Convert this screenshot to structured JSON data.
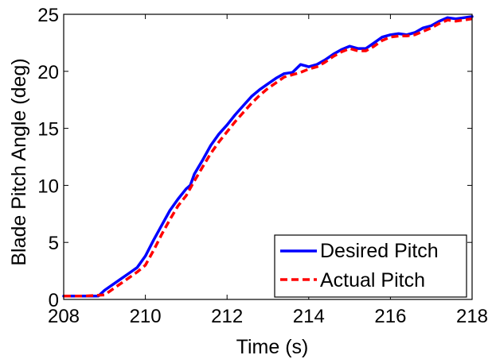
{
  "chart_data": {
    "type": "line",
    "title": "",
    "xlabel": "Time (s)",
    "ylabel": "Blade Pitch Angle (deg)",
    "xlim": [
      208,
      218
    ],
    "ylim": [
      0,
      25
    ],
    "xticks": [
      208,
      210,
      212,
      214,
      216,
      218
    ],
    "yticks": [
      0,
      5,
      10,
      15,
      20,
      25
    ],
    "grid": false,
    "legend_position": "bottom-right",
    "series": [
      {
        "name": "Desired Pitch",
        "color": "#0000ff",
        "style": "solid",
        "x": [
          208.0,
          208.5,
          208.85,
          209.0,
          209.2,
          209.4,
          209.6,
          209.8,
          210.0,
          210.2,
          210.4,
          210.6,
          210.8,
          211.0,
          211.1,
          211.2,
          211.4,
          211.6,
          211.8,
          212.0,
          212.2,
          212.4,
          212.6,
          212.8,
          213.0,
          213.2,
          213.4,
          213.6,
          213.8,
          213.9,
          214.0,
          214.2,
          214.4,
          214.6,
          214.8,
          215.0,
          215.2,
          215.4,
          215.6,
          215.8,
          216.0,
          216.2,
          216.4,
          216.6,
          216.8,
          217.0,
          217.2,
          217.4,
          217.6,
          217.8,
          218.0
        ],
        "y": [
          0.3,
          0.3,
          0.3,
          0.8,
          1.3,
          1.8,
          2.3,
          2.8,
          3.8,
          5.2,
          6.5,
          7.8,
          8.8,
          9.7,
          10.0,
          11.0,
          12.2,
          13.5,
          14.5,
          15.3,
          16.2,
          17.0,
          17.8,
          18.4,
          18.9,
          19.4,
          19.8,
          19.9,
          20.6,
          20.5,
          20.4,
          20.6,
          21.0,
          21.5,
          21.9,
          22.2,
          22.0,
          22.0,
          22.5,
          23.0,
          23.2,
          23.3,
          23.2,
          23.4,
          23.8,
          24.0,
          24.4,
          24.7,
          24.6,
          24.7,
          24.8
        ]
      },
      {
        "name": "Actual Pitch",
        "color": "#ff0000",
        "style": "dashed",
        "x": [
          208.0,
          208.5,
          209.0,
          209.2,
          209.4,
          209.6,
          209.8,
          210.0,
          210.2,
          210.4,
          210.6,
          210.8,
          211.0,
          211.2,
          211.4,
          211.6,
          211.8,
          212.0,
          212.2,
          212.4,
          212.6,
          212.8,
          213.0,
          213.2,
          213.4,
          213.6,
          213.8,
          214.0,
          214.2,
          214.4,
          214.6,
          214.8,
          215.0,
          215.2,
          215.4,
          215.6,
          215.8,
          216.0,
          216.2,
          216.4,
          216.6,
          216.8,
          217.0,
          217.2,
          217.4,
          217.6,
          217.8,
          218.0
        ],
        "y": [
          0.3,
          0.3,
          0.4,
          0.9,
          1.4,
          1.9,
          2.4,
          3.0,
          4.3,
          5.7,
          7.0,
          8.2,
          9.1,
          10.4,
          11.6,
          12.8,
          13.8,
          14.7,
          15.6,
          16.4,
          17.2,
          17.9,
          18.5,
          19.0,
          19.5,
          19.7,
          19.9,
          20.2,
          20.4,
          20.8,
          21.3,
          21.7,
          22.0,
          21.8,
          21.8,
          22.2,
          22.7,
          23.0,
          23.1,
          23.1,
          23.2,
          23.5,
          23.8,
          24.2,
          24.5,
          24.4,
          24.5,
          24.6
        ]
      }
    ]
  }
}
